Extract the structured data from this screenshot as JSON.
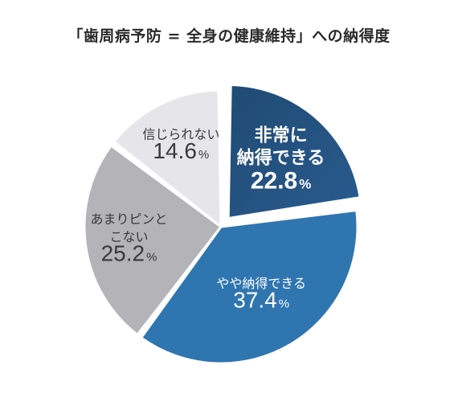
{
  "chart_data": {
    "type": "pie",
    "title": "「歯周病予防 = 全身の健康維持」への納得度",
    "unit": "%",
    "slices": [
      {
        "label_lines": [
          "非常に",
          "納得できる"
        ],
        "value": 22.8,
        "value_text": "22.8",
        "color": "#1f4a73",
        "color2": "#2a5b8f",
        "label_color": "#ffffff",
        "exploded": true,
        "bold": true
      },
      {
        "label_lines": [
          "やや納得できる"
        ],
        "value": 37.4,
        "value_text": "37.4",
        "color": "#2f75b0",
        "color2": "#2f75b0",
        "label_color": "#ffffff",
        "exploded": false,
        "bold": false
      },
      {
        "label_lines": [
          "あまりピンと",
          "こない"
        ],
        "value": 25.2,
        "value_text": "25.2",
        "color": "#b4b3b8",
        "color2": "#b4b3b8",
        "label_color": "#3a3a3a",
        "exploded": false,
        "bold": false
      },
      {
        "label_lines": [
          "信じられない"
        ],
        "value": 14.6,
        "value_text": "14.6",
        "color": "#e6e5ea",
        "color2": "#e6e5ea",
        "label_color": "#3a3a3a",
        "exploded": false,
        "bold": false
      }
    ]
  }
}
